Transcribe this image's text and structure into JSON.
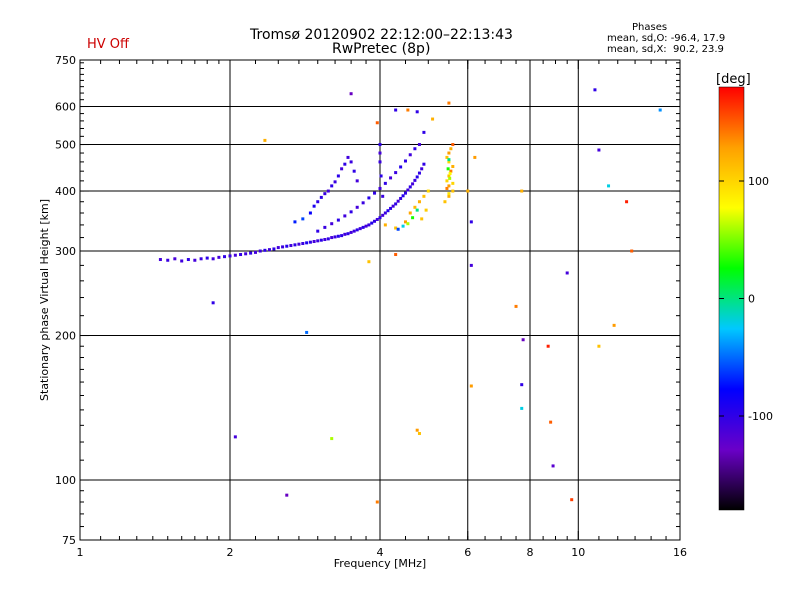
{
  "header": {
    "status": "HV Off",
    "title_line1": "Tromsø 20120902 22:12:00–22:13:43",
    "title_line2": "RwPretec (8p)",
    "phases_heading": "Phases",
    "phases_o": "mean, sd,O: -96.4, 17.9",
    "phases_x": "mean, sd,X:  90.2, 23.9"
  },
  "colors": {
    "status": "#cc0000",
    "colorbar_stops": [
      "#000000",
      "#6a00c8",
      "#0000ff",
      "#00c8ff",
      "#00ff00",
      "#ffff00",
      "#ffa000",
      "#ff0000"
    ]
  },
  "chart_data": {
    "type": "scatter",
    "xlabel": "Frequency [MHz]",
    "ylabel": "Stationary phase Virtual Height [km]",
    "x_scale": "log",
    "y_scale": "log",
    "xlim": [
      1,
      16
    ],
    "ylim": [
      75,
      750
    ],
    "x_ticks": [
      {
        "value": 1,
        "label": "1"
      },
      {
        "value": 2,
        "label": "2"
      },
      {
        "value": 4,
        "label": "4"
      },
      {
        "value": 6,
        "label": "6"
      },
      {
        "value": 8,
        "label": "8"
      },
      {
        "value": 10,
        "label": "10"
      },
      {
        "value": 16,
        "label": "16"
      }
    ],
    "y_ticks": [
      {
        "value": 75,
        "label": "75"
      },
      {
        "value": 100,
        "label": "100"
      },
      {
        "value": 200,
        "label": "200"
      },
      {
        "value": 300,
        "label": "300"
      },
      {
        "value": 400,
        "label": "400"
      },
      {
        "value": 500,
        "label": "500"
      },
      {
        "value": 600,
        "label": "600"
      },
      {
        "value": 750,
        "label": "750"
      }
    ],
    "grid": true,
    "colorbar": {
      "label": "[deg]",
      "range": [
        -180,
        180
      ],
      "ticks": [
        {
          "value": 100,
          "label": "100"
        },
        {
          "value": 0,
          "label": "0"
        },
        {
          "value": -100,
          "label": "-100"
        }
      ]
    },
    "points": [
      [
        1.45,
        288,
        -110
      ],
      [
        1.5,
        287,
        -105
      ],
      [
        1.55,
        289,
        -112
      ],
      [
        1.6,
        286,
        -108
      ],
      [
        1.65,
        288,
        -100
      ],
      [
        1.7,
        287,
        -110
      ],
      [
        1.75,
        289,
        -105
      ],
      [
        1.8,
        290,
        -98
      ],
      [
        1.85,
        289,
        -108
      ],
      [
        1.9,
        291,
        -110
      ],
      [
        1.95,
        292,
        -100
      ],
      [
        2.0,
        293,
        -105
      ],
      [
        2.05,
        294,
        -110
      ],
      [
        2.1,
        295,
        -102
      ],
      [
        2.15,
        296,
        -108
      ],
      [
        2.2,
        297,
        -100
      ],
      [
        2.25,
        298,
        -110
      ],
      [
        2.3,
        300,
        -105
      ],
      [
        2.35,
        301,
        -98
      ],
      [
        2.4,
        302,
        -108
      ],
      [
        2.45,
        303,
        -100
      ],
      [
        2.5,
        305,
        -110
      ],
      [
        2.55,
        306,
        -105
      ],
      [
        2.6,
        307,
        -95
      ],
      [
        2.65,
        308,
        -108
      ],
      [
        2.7,
        309,
        -100
      ],
      [
        2.75,
        310,
        -110
      ],
      [
        2.8,
        311,
        -105
      ],
      [
        2.85,
        312,
        -90
      ],
      [
        2.9,
        313,
        -100
      ],
      [
        2.95,
        314,
        -110
      ],
      [
        3.0,
        315,
        -105
      ],
      [
        3.05,
        316,
        -98
      ],
      [
        3.1,
        317,
        -108
      ],
      [
        3.15,
        318,
        -100
      ],
      [
        3.2,
        320,
        -110
      ],
      [
        3.25,
        321,
        -105
      ],
      [
        3.3,
        322,
        -95
      ],
      [
        3.35,
        323,
        -100
      ],
      [
        3.4,
        325,
        -108
      ],
      [
        3.45,
        326,
        -100
      ],
      [
        3.5,
        328,
        -110
      ],
      [
        3.55,
        330,
        -105
      ],
      [
        3.6,
        332,
        -98
      ],
      [
        3.65,
        334,
        -108
      ],
      [
        3.7,
        336,
        -100
      ],
      [
        3.75,
        338,
        -110
      ],
      [
        3.8,
        340,
        -105
      ],
      [
        3.85,
        343,
        -95
      ],
      [
        3.9,
        346,
        -100
      ],
      [
        3.95,
        349,
        -108
      ],
      [
        4.0,
        352,
        -100
      ],
      [
        4.05,
        356,
        -110
      ],
      [
        4.1,
        360,
        -105
      ],
      [
        4.15,
        364,
        -95
      ],
      [
        4.2,
        368,
        -100
      ],
      [
        4.25,
        372,
        -108
      ],
      [
        4.3,
        376,
        -100
      ],
      [
        4.35,
        381,
        -110
      ],
      [
        4.4,
        386,
        -105
      ],
      [
        4.45,
        391,
        -95
      ],
      [
        4.5,
        396,
        -100
      ],
      [
        4.55,
        402,
        -108
      ],
      [
        4.6,
        408,
        -100
      ],
      [
        4.65,
        414,
        -110
      ],
      [
        4.7,
        421,
        -105
      ],
      [
        4.75,
        428,
        -95
      ],
      [
        4.8,
        436,
        -100
      ],
      [
        4.85,
        445,
        -108
      ],
      [
        4.9,
        455,
        -100
      ],
      [
        3.0,
        330,
        -100
      ],
      [
        3.1,
        336,
        -105
      ],
      [
        3.2,
        342,
        -110
      ],
      [
        3.3,
        348,
        -98
      ],
      [
        3.4,
        355,
        -108
      ],
      [
        3.5,
        362,
        -100
      ],
      [
        3.6,
        370,
        -110
      ],
      [
        3.7,
        378,
        -105
      ],
      [
        3.8,
        387,
        -95
      ],
      [
        3.9,
        396,
        -100
      ],
      [
        4.0,
        405,
        -108
      ],
      [
        4.1,
        415,
        -100
      ],
      [
        4.2,
        426,
        -110
      ],
      [
        4.3,
        437,
        -105
      ],
      [
        4.4,
        449,
        -95
      ],
      [
        4.5,
        462,
        -100
      ],
      [
        4.6,
        476,
        -108
      ],
      [
        4.7,
        490,
        -100
      ],
      [
        4.0,
        460,
        -105
      ],
      [
        4.0,
        480,
        -110
      ],
      [
        4.0,
        500,
        -100
      ],
      [
        4.02,
        430,
        -98
      ],
      [
        4.05,
        390,
        -105
      ],
      [
        3.6,
        420,
        -110
      ],
      [
        3.55,
        440,
        -100
      ],
      [
        3.5,
        460,
        -105
      ],
      [
        3.45,
        470,
        -108
      ],
      [
        3.4,
        455,
        -100
      ],
      [
        3.35,
        445,
        -110
      ],
      [
        3.3,
        430,
        -98
      ],
      [
        3.25,
        418,
        -105
      ],
      [
        3.2,
        410,
        -100
      ],
      [
        3.15,
        400,
        -110
      ],
      [
        3.1,
        395,
        -105
      ],
      [
        3.05,
        388,
        -100
      ],
      [
        2.9,
        360,
        -80
      ],
      [
        2.8,
        350,
        -60
      ],
      [
        2.7,
        345,
        -70
      ],
      [
        2.95,
        372,
        -90
      ],
      [
        3.0,
        380,
        -100
      ],
      [
        4.1,
        340,
        120
      ],
      [
        4.3,
        335,
        110
      ],
      [
        4.5,
        345,
        130
      ],
      [
        4.6,
        360,
        125
      ],
      [
        4.7,
        370,
        115
      ],
      [
        4.8,
        380,
        120
      ],
      [
        4.9,
        390,
        110
      ],
      [
        5.0,
        400,
        100
      ],
      [
        4.85,
        350,
        110
      ],
      [
        4.95,
        365,
        105
      ],
      [
        4.55,
        342,
        60
      ],
      [
        4.65,
        352,
        30
      ],
      [
        4.75,
        365,
        0
      ],
      [
        4.45,
        338,
        -20
      ],
      [
        4.35,
        333,
        -60
      ],
      [
        5.4,
        380,
        110
      ],
      [
        5.5,
        390,
        120
      ],
      [
        5.6,
        400,
        110
      ],
      [
        5.5,
        410,
        130
      ],
      [
        5.45,
        420,
        100
      ],
      [
        5.5,
        430,
        110
      ],
      [
        5.55,
        440,
        140
      ],
      [
        5.6,
        450,
        120
      ],
      [
        5.5,
        460,
        100
      ],
      [
        5.45,
        470,
        110
      ],
      [
        5.5,
        480,
        130
      ],
      [
        5.55,
        490,
        120
      ],
      [
        5.6,
        500,
        150
      ],
      [
        5.5,
        395,
        90
      ],
      [
        5.52,
        425,
        60
      ],
      [
        5.48,
        445,
        30
      ],
      [
        5.5,
        465,
        0
      ],
      [
        5.53,
        435,
        80
      ],
      [
        5.6,
        415,
        100
      ],
      [
        5.45,
        405,
        140
      ],
      [
        3.5,
        638,
        -130
      ],
      [
        4.3,
        590,
        -100
      ],
      [
        4.55,
        590,
        140
      ],
      [
        4.75,
        585,
        -100
      ],
      [
        5.5,
        610,
        140
      ],
      [
        5.1,
        565,
        120
      ],
      [
        3.95,
        555,
        150
      ],
      [
        4.9,
        530,
        -100
      ],
      [
        4.8,
        500,
        -110
      ],
      [
        2.35,
        510,
        120
      ],
      [
        6.2,
        470,
        130
      ],
      [
        6.0,
        400,
        120
      ],
      [
        6.1,
        345,
        -100
      ],
      [
        6.1,
        280,
        -110
      ],
      [
        3.8,
        285,
        110
      ],
      [
        4.3,
        295,
        150
      ],
      [
        7.7,
        400,
        120
      ],
      [
        7.5,
        230,
        140
      ],
      [
        7.75,
        196,
        -130
      ],
      [
        8.7,
        190,
        170
      ],
      [
        7.7,
        158,
        -100
      ],
      [
        7.7,
        141,
        -20
      ],
      [
        6.1,
        157,
        130
      ],
      [
        8.8,
        132,
        150
      ],
      [
        8.9,
        107,
        -120
      ],
      [
        4.75,
        127,
        130
      ],
      [
        4.8,
        125,
        110
      ],
      [
        3.2,
        122,
        60
      ],
      [
        2.05,
        123,
        -110
      ],
      [
        1.85,
        234,
        -100
      ],
      [
        2.85,
        203,
        -50
      ],
      [
        2.6,
        93,
        -130
      ],
      [
        3.95,
        90,
        140
      ],
      [
        9.7,
        91,
        160
      ],
      [
        9.5,
        270,
        -110
      ],
      [
        10.8,
        650,
        -100
      ],
      [
        11.0,
        487,
        -110
      ],
      [
        11.5,
        410,
        -20
      ],
      [
        12.5,
        380,
        170
      ],
      [
        12.8,
        300,
        150
      ],
      [
        11.8,
        210,
        130
      ],
      [
        11.0,
        190,
        110
      ],
      [
        14.6,
        590,
        -40
      ]
    ]
  }
}
